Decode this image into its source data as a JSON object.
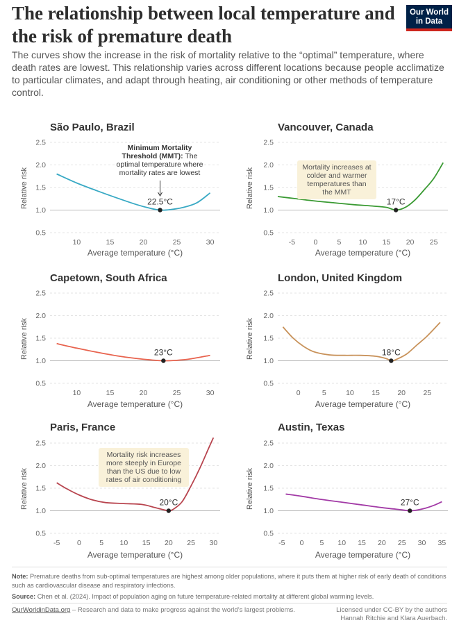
{
  "header": {
    "title": "The relationship between local temperature and the risk of premature death",
    "subtitle": "The curves show the increase in the risk of mortality relative to the “optimal” temperature, where death rates are lowest. This relationship varies across different locations because people acclimatize to particular climates, and adapt through heating, air conditioning or other methods of temperature control.",
    "logo_line1": "Our World",
    "logo_line2": "in Data"
  },
  "axis": {
    "ylabel": "Relative risk",
    "xlabel": "Average temperature (°C)"
  },
  "chart_data": [
    {
      "type": "line",
      "title": "São Paulo, Brazil",
      "color": "#38a9c4",
      "xlim": [
        6,
        31.5
      ],
      "xticks": [
        10,
        15,
        20,
        25,
        30
      ],
      "ylim": [
        0.5,
        2.5
      ],
      "yticks": [
        0.5,
        1.0,
        1.5,
        2.0,
        2.5
      ],
      "x": [
        7,
        10,
        13,
        16,
        19,
        21,
        22.5,
        24,
        26,
        28,
        30
      ],
      "y": [
        1.8,
        1.6,
        1.43,
        1.27,
        1.12,
        1.04,
        1.0,
        1.01,
        1.06,
        1.16,
        1.38
      ],
      "mmt": {
        "x": 22.5,
        "label": "22.5°C"
      },
      "annotation_bold": "Minimum Mortality Threshold (MMT):",
      "annotation": "The optimal temperature where mortality rates are lowest"
    },
    {
      "type": "line",
      "title": "Vancouver, Canada",
      "color": "#3a9a33",
      "xlim": [
        -8,
        28
      ],
      "xticks": [
        -5,
        0,
        5,
        10,
        15,
        20,
        25
      ],
      "ylim": [
        0.5,
        2.5
      ],
      "yticks": [
        0.5,
        1.0,
        1.5,
        2.0,
        2.5
      ],
      "x": [
        -8,
        -4,
        0,
        4,
        8,
        12,
        15,
        17,
        19,
        21,
        23,
        25,
        27
      ],
      "y": [
        1.3,
        1.25,
        1.2,
        1.16,
        1.12,
        1.09,
        1.06,
        1.0,
        1.06,
        1.22,
        1.45,
        1.7,
        2.05
      ],
      "mmt": {
        "x": 17,
        "label": "17°C"
      },
      "annotation": "Mortality increases at colder and warmer temperatures than the MMT"
    },
    {
      "type": "line",
      "title": "Capetown, South Africa",
      "color": "#e8634e",
      "xlim": [
        6,
        31.5
      ],
      "xticks": [
        10,
        15,
        20,
        25,
        30
      ],
      "ylim": [
        0.5,
        2.5
      ],
      "yticks": [
        0.5,
        1.0,
        1.5,
        2.0,
        2.5
      ],
      "x": [
        7,
        10,
        13,
        16,
        19,
        21,
        23,
        25,
        27,
        30
      ],
      "y": [
        1.38,
        1.28,
        1.19,
        1.11,
        1.05,
        1.02,
        1.0,
        1.01,
        1.04,
        1.12
      ],
      "mmt": {
        "x": 23,
        "label": "23°C"
      }
    },
    {
      "type": "line",
      "title": "London, United Kingdom",
      "color": "#c8925a",
      "xlim": [
        -4,
        29
      ],
      "xticks": [
        0,
        5,
        10,
        15,
        20,
        25
      ],
      "ylim": [
        0.5,
        2.5
      ],
      "yticks": [
        0.5,
        1.0,
        1.5,
        2.0,
        2.5
      ],
      "x": [
        -3,
        -1,
        1,
        3,
        6,
        9,
        12,
        15,
        17,
        18,
        19,
        21,
        23,
        25,
        27.5
      ],
      "y": [
        1.75,
        1.5,
        1.32,
        1.2,
        1.13,
        1.12,
        1.12,
        1.1,
        1.05,
        1.0,
        1.03,
        1.15,
        1.35,
        1.55,
        1.85
      ],
      "mmt": {
        "x": 18,
        "label": "18°C"
      }
    },
    {
      "type": "line",
      "title": "Paris, France",
      "color": "#b8444e",
      "xlim": [
        -6.5,
        31.5
      ],
      "xticks": [
        -5,
        0,
        5,
        10,
        15,
        20,
        25,
        30
      ],
      "ylim": [
        0.5,
        2.5
      ],
      "yticks": [
        0.5,
        1.0,
        1.5,
        2.0,
        2.5
      ],
      "x": [
        -5,
        -3,
        0,
        3,
        6,
        10,
        14,
        17,
        19,
        20,
        21,
        23,
        25,
        27,
        29,
        30
      ],
      "y": [
        1.62,
        1.5,
        1.35,
        1.24,
        1.18,
        1.16,
        1.14,
        1.07,
        1.02,
        1.0,
        1.03,
        1.2,
        1.55,
        1.95,
        2.4,
        2.62
      ],
      "mmt": {
        "x": 20,
        "label": "20°C"
      },
      "annotation": "Mortality risk increases more steeply in Europe than the US due to low rates of air conditioning"
    },
    {
      "type": "line",
      "title": "Austin, Texas",
      "color": "#a23aa6",
      "xlim": [
        -6,
        36.5
      ],
      "xticks": [
        -5,
        0,
        5,
        10,
        15,
        20,
        25,
        30,
        35
      ],
      "ylim": [
        0.5,
        2.5
      ],
      "yticks": [
        0.5,
        1.0,
        1.5,
        2.0,
        2.5
      ],
      "x": [
        -4,
        0,
        5,
        10,
        15,
        20,
        25,
        27,
        29,
        31,
        33,
        35
      ],
      "y": [
        1.37,
        1.32,
        1.25,
        1.19,
        1.13,
        1.07,
        1.02,
        1.0,
        1.02,
        1.06,
        1.12,
        1.2
      ],
      "mmt": {
        "x": 27,
        "label": "27°C"
      }
    }
  ],
  "notes": {
    "note_label": "Note:",
    "note_text": "Premature deaths from sub-optimal temperatures are highest among older populations, where it puts them at higher risk of early death of conditions such as cardiovascular disease and respiratory infections.",
    "source_label": "Source:",
    "source_text": "Chen et al. (2024). Impact of population aging on future temperature-related mortality at different global warming levels."
  },
  "footer": {
    "site": "OurWorldinData.org",
    "tagline": "– Research and data to make progress against the world’s largest problems.",
    "license_line1": "Licensed under CC-BY by the authors",
    "license_line2": "Hannah Ritchie and Klara Auerbach."
  }
}
